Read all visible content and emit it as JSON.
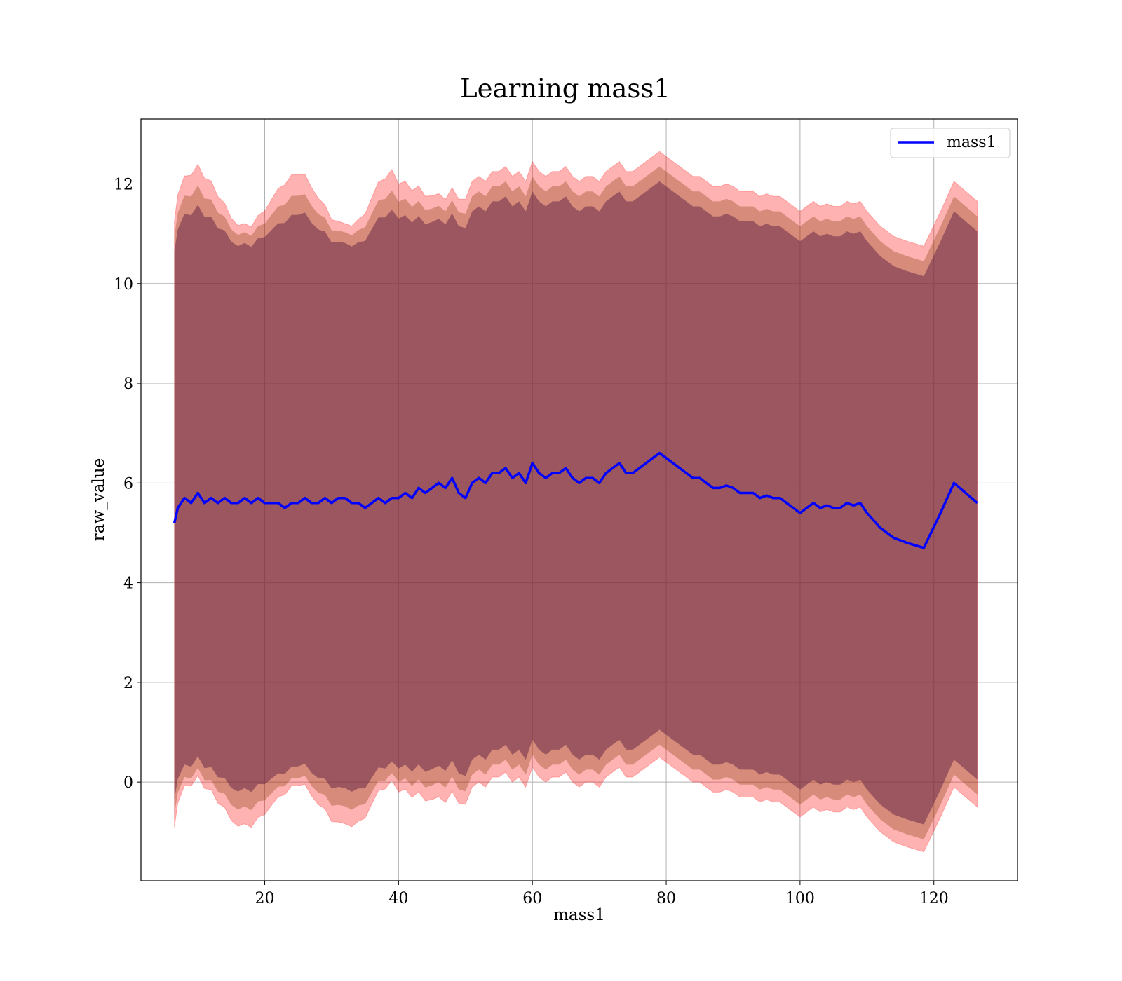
{
  "chart_data": {
    "type": "line",
    "title": "Learning mass1",
    "xlabel": "mass1",
    "ylabel": "raw_value",
    "xlim": [
      1.5,
      132.5
    ],
    "ylim": [
      -1.98,
      13.3
    ],
    "xticks": [
      20,
      40,
      60,
      80,
      100,
      120
    ],
    "yticks": [
      0,
      2,
      4,
      6,
      8,
      10,
      12
    ],
    "grid": true,
    "legend": {
      "placement": "top-right",
      "entries": [
        "mass1"
      ]
    },
    "colors": {
      "line": "#0000ff",
      "band_outer": "#ff0000",
      "band_inner": "#8b4513",
      "band_core": "#6a2a4a"
    },
    "series": [
      {
        "name": "mass1",
        "x": [
          6.5,
          7,
          8,
          9,
          10,
          11,
          12,
          13,
          14,
          15,
          16,
          17,
          18,
          19,
          20,
          21,
          22,
          23,
          24,
          25,
          26,
          27,
          28,
          29,
          30,
          31,
          32,
          33,
          34,
          35,
          36,
          37,
          38,
          39,
          40,
          41,
          42,
          43,
          44,
          45,
          46,
          47,
          48,
          49,
          50,
          51,
          52,
          53,
          54,
          55,
          56,
          57,
          58,
          59,
          60,
          61,
          62,
          63,
          64,
          65,
          66,
          67,
          68,
          69,
          70,
          71,
          72,
          73,
          74,
          75,
          76,
          77,
          78,
          79,
          80,
          81,
          82,
          83,
          84,
          85,
          86,
          87,
          88,
          89,
          90,
          91,
          92,
          93,
          94,
          95,
          96,
          97,
          98,
          99,
          100,
          101,
          102,
          103,
          104,
          105,
          106,
          107,
          108,
          109,
          110,
          112,
          114,
          116,
          118.5,
          121,
          123,
          126.5
        ],
        "y": [
          5.2,
          5.5,
          5.7,
          5.6,
          5.8,
          5.6,
          5.7,
          5.6,
          5.7,
          5.6,
          5.6,
          5.7,
          5.6,
          5.7,
          5.6,
          5.6,
          5.6,
          5.5,
          5.6,
          5.6,
          5.7,
          5.6,
          5.6,
          5.7,
          5.6,
          5.7,
          5.7,
          5.6,
          5.6,
          5.5,
          5.6,
          5.7,
          5.6,
          5.7,
          5.7,
          5.8,
          5.7,
          5.9,
          5.8,
          5.9,
          6.0,
          5.9,
          6.1,
          5.8,
          5.7,
          6.0,
          6.1,
          6.0,
          6.2,
          6.2,
          6.3,
          6.1,
          6.2,
          6.0,
          6.4,
          6.2,
          6.1,
          6.2,
          6.2,
          6.3,
          6.1,
          6.0,
          6.1,
          6.1,
          6.0,
          6.2,
          6.3,
          6.4,
          6.2,
          6.2,
          6.3,
          6.4,
          6.5,
          6.6,
          6.5,
          6.4,
          6.3,
          6.2,
          6.1,
          6.1,
          6.0,
          5.9,
          5.9,
          5.95,
          5.9,
          5.8,
          5.8,
          5.8,
          5.7,
          5.75,
          5.7,
          5.7,
          5.6,
          5.5,
          5.4,
          5.5,
          5.6,
          5.5,
          5.55,
          5.5,
          5.5,
          5.6,
          5.55,
          5.6,
          5.4,
          5.1,
          4.9,
          4.8,
          4.7,
          5.4,
          6.0,
          5.6
        ]
      }
    ]
  }
}
